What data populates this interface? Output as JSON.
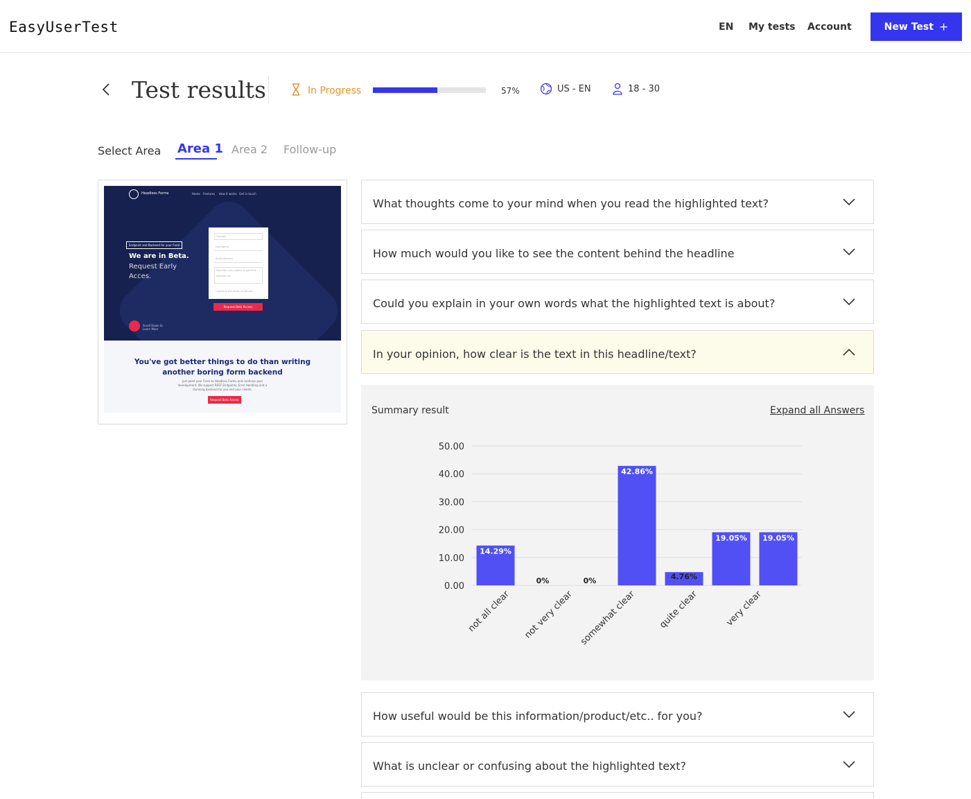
{
  "header": {
    "logo": "EasyUserTest",
    "nav": {
      "lang": "EN",
      "my_tests": "My tests",
      "account": "Account"
    },
    "new_test_label": "New Test",
    "new_test_icon": "+"
  },
  "title_bar": {
    "title": "Test results",
    "status": "In Progress",
    "progress_pct": 57,
    "progress_label": "57%",
    "locale": "US - EN",
    "age_range": "18 - 30",
    "status_color": "#e8922a",
    "accent": "#3535f0"
  },
  "areas": {
    "label": "Select Area",
    "tabs": [
      "Area 1",
      "Area 2",
      "Follow-up"
    ],
    "active": "Area 1"
  },
  "preview": {
    "brand": "Headless Forms",
    "nav": [
      "Home",
      "Features",
      "How it works",
      "Get in touch"
    ],
    "badge": "Endpoint and Backend for your Form",
    "hero_title": "We are in Beta.",
    "hero_sub": "Request Early Acces.",
    "form_fields": [
      "Thomas",
      "Last Name",
      "Email Address",
      "Describe your project to get first-hand by me"
    ],
    "terms": "I agree to the Terms of Service",
    "form_cta": "Request Beta Access",
    "scroll_hint": "Scroll Down to Learn More",
    "bottom_heading": "You've got better things to do than writing another boring form backend",
    "bottom_body": "Just point your Form to Headless Forms and continue your development. We support REST Endpoints, Error Handling and a stunning backend for you and your clients.",
    "bottom_cta": "Request Beta Access"
  },
  "questions": [
    {
      "text": "What thoughts come to your mind when you read the highlighted text?",
      "expanded": false
    },
    {
      "text": "How much would you like to see the content behind the headline",
      "expanded": false
    },
    {
      "text": "Could you explain in your own words what the highlighted text is about?",
      "expanded": false
    },
    {
      "text": "In your opinion, how clear is the text in this headline/text?",
      "expanded": true
    },
    {
      "text": "How useful would be this information/product/etc.. for you?",
      "expanded": false
    },
    {
      "text": "What is unclear or confusing about the highlighted text?",
      "expanded": false
    }
  ],
  "summary": {
    "label": "Summary result",
    "expand_link": "Expand all Answers"
  },
  "chart_data": {
    "type": "bar",
    "categories": [
      "not all clear",
      "not very clear",
      "",
      "somewhat clear",
      "quite clear",
      "very clear",
      ""
    ],
    "x_tick_labels": [
      "not all clear",
      "not very clear",
      "somewhat clear",
      "quite clear",
      "very clear"
    ],
    "values": [
      14.29,
      0,
      0,
      42.86,
      4.76,
      19.05,
      19.05
    ],
    "data_labels": [
      "14.29%",
      "0%",
      "0%",
      "42.86%",
      "4.76%",
      "19.05%",
      "19.05%"
    ],
    "y_ticks": [
      "0.00",
      "10.00",
      "20.00",
      "30.00",
      "40.00",
      "50.00"
    ],
    "ylim": [
      0,
      50
    ],
    "grid": true,
    "bar_color": "#5050f5"
  }
}
